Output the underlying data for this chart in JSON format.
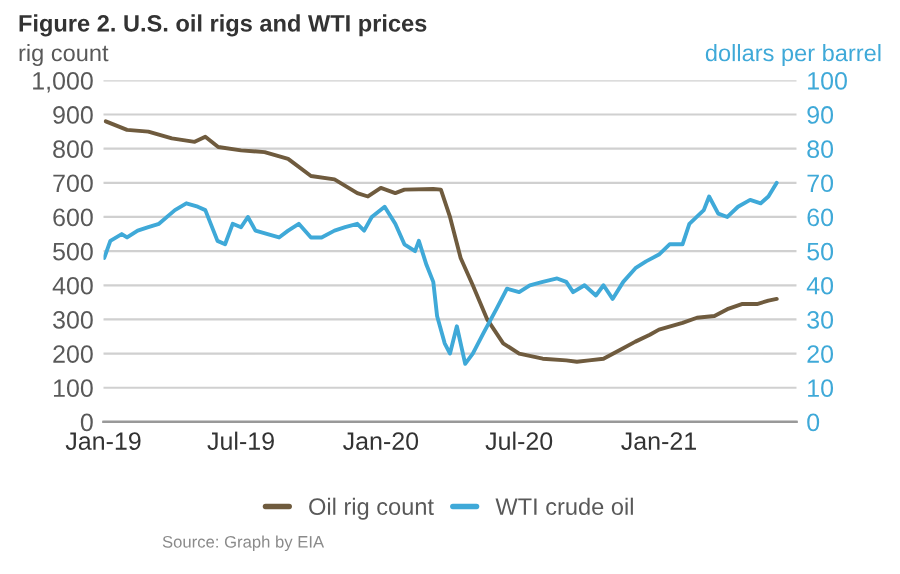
{
  "chart_data": {
    "type": "line",
    "title": "Figure 2. U.S. oil rigs and WTI prices",
    "ylabel": "rig count",
    "y2label": "dollars per barrel",
    "xlim": [
      "2019-01-01",
      "2021-07-01"
    ],
    "xticks": [
      {
        "value": "2019-01-01",
        "label": "Jan-19"
      },
      {
        "value": "2019-07-01",
        "label": "Jul-19"
      },
      {
        "value": "2020-01-01",
        "label": "Jan-20"
      },
      {
        "value": "2020-07-01",
        "label": "Jul-20"
      },
      {
        "value": "2021-01-01",
        "label": "Jan-21"
      }
    ],
    "ylim": [
      0,
      1000
    ],
    "yticks": [
      0,
      100,
      200,
      300,
      400,
      500,
      600,
      700,
      800,
      900,
      {
        "value": 1000,
        "label": "1,000"
      }
    ],
    "y2lim": [
      0,
      100
    ],
    "y2ticks": [
      0,
      10,
      20,
      30,
      40,
      50,
      60,
      70,
      80,
      90,
      100
    ],
    "grid": "y",
    "legend": "bottom",
    "series": [
      {
        "name": "Oil rig count",
        "color": "#6f5b3e",
        "x": [
          "2019-01-04",
          "2019-02-01",
          "2019-03-01",
          "2019-04-01",
          "2019-05-01",
          "2019-05-15",
          "2019-06-01",
          "2019-07-01",
          "2019-08-01",
          "2019-09-01",
          "2019-10-01",
          "2019-11-01",
          "2019-12-01",
          "2019-12-15",
          "2020-01-01",
          "2020-01-20",
          "2020-02-01",
          "2020-03-10",
          "2020-03-20",
          "2020-04-01",
          "2020-04-15",
          "2020-05-01",
          "2020-05-20",
          "2020-06-10",
          "2020-07-01",
          "2020-08-01",
          "2020-09-01",
          "2020-09-15",
          "2020-10-01",
          "2020-10-20",
          "2020-11-10",
          "2020-12-01",
          "2020-12-20",
          "2021-01-01",
          "2021-02-01",
          "2021-02-20",
          "2021-03-15",
          "2021-04-01",
          "2021-04-20",
          "2021-05-10",
          "2021-05-25",
          "2021-06-05"
        ],
        "values": [
          880,
          855,
          850,
          830,
          820,
          835,
          805,
          795,
          790,
          770,
          720,
          710,
          670,
          660,
          685,
          670,
          680,
          682,
          680,
          600,
          480,
          400,
          300,
          230,
          200,
          185,
          180,
          176,
          180,
          185,
          210,
          235,
          255,
          270,
          290,
          305,
          310,
          330,
          345,
          345,
          355,
          360
        ]
      },
      {
        "name": "WTI crude oil",
        "color": "#3fa9d8",
        "axis": "y2",
        "x": [
          "2019-01-02",
          "2019-01-10",
          "2019-01-25",
          "2019-02-01",
          "2019-02-15",
          "2019-03-01",
          "2019-03-15",
          "2019-04-05",
          "2019-04-20",
          "2019-05-05",
          "2019-05-15",
          "2019-05-31",
          "2019-06-10",
          "2019-06-20",
          "2019-07-01",
          "2019-07-10",
          "2019-07-20",
          "2019-08-05",
          "2019-08-20",
          "2019-09-01",
          "2019-09-15",
          "2019-10-01",
          "2019-10-15",
          "2019-11-01",
          "2019-11-15",
          "2019-12-01",
          "2019-12-10",
          "2019-12-20",
          "2020-01-06",
          "2020-01-20",
          "2020-02-01",
          "2020-02-15",
          "2020-02-20",
          "2020-03-01",
          "2020-03-10",
          "2020-03-15",
          "2020-03-25",
          "2020-04-01",
          "2020-04-10",
          "2020-04-21",
          "2020-05-01",
          "2020-05-15",
          "2020-06-01",
          "2020-06-15",
          "2020-07-01",
          "2020-07-15",
          "2020-08-01",
          "2020-08-20",
          "2020-09-01",
          "2020-09-10",
          "2020-09-25",
          "2020-10-10",
          "2020-10-20",
          "2020-11-01",
          "2020-11-15",
          "2020-12-01",
          "2020-12-15",
          "2021-01-01",
          "2021-01-15",
          "2021-02-01",
          "2021-02-10",
          "2021-03-01",
          "2021-03-08",
          "2021-03-20",
          "2021-04-01",
          "2021-04-15",
          "2021-05-01",
          "2021-05-15",
          "2021-05-25",
          "2021-06-05"
        ],
        "values": [
          48,
          53,
          55,
          54,
          56,
          57,
          58,
          62,
          64,
          63,
          62,
          53,
          52,
          58,
          57,
          60,
          56,
          55,
          54,
          56,
          58,
          54,
          54,
          56,
          57,
          58,
          56,
          60,
          63,
          58,
          52,
          50,
          53,
          46,
          41,
          31,
          23,
          20,
          28,
          17,
          20,
          26,
          33,
          39,
          38,
          40,
          41,
          42,
          41,
          38,
          40,
          37,
          40,
          36,
          41,
          45,
          47,
          49,
          52,
          52,
          58,
          62,
          66,
          61,
          60,
          63,
          65,
          64,
          66,
          70
        ]
      }
    ],
    "annotations": [
      "Source: Graph by EIA"
    ]
  }
}
